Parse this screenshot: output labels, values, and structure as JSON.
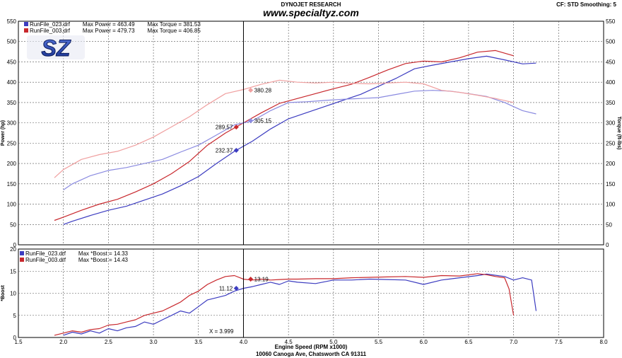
{
  "header": {
    "title": "DYNOJET RESEARCH",
    "website": "www.specialtyz.com",
    "cf_smoothing": "CF: STD  Smoothing: 5",
    "footer": "10060 Canoga Ave, Chatsworth CA 91311",
    "logo_text": "SZ"
  },
  "legend_top": [
    {
      "run": "RunFile_023.drf",
      "power": "Max Power = 463.49",
      "torque": "Max Torque = 381.53",
      "color": "#3c3cc0"
    },
    {
      "run": "RunFile_003.drf",
      "power": "Max Power = 479.73",
      "torque": "Max Torque = 406.85",
      "color": "#c8282d"
    }
  ],
  "legend_bottom": [
    {
      "run": "RunFile_023.drf",
      "boost": "Max *Boost = 14.33",
      "color": "#3c3cc0"
    },
    {
      "run": "RunFile_003.drf",
      "boost": "Max *Boost = 14.43",
      "color": "#c8282d"
    }
  ],
  "colors": {
    "run_023": "#3c3cc0",
    "run_003": "#c8282d",
    "run_023_torque": "#8a8ae0",
    "run_003_torque": "#f0a0a0"
  },
  "chart_data": [
    {
      "type": "line",
      "xlabel": "Engine Speed (RPM x1000)",
      "ylabel": "Power (hp)",
      "y2label": "Torque (ft-lbs)",
      "xlim": [
        1.5,
        8.0
      ],
      "ylim": [
        0,
        550
      ],
      "xticks": [
        "1.5",
        "2.0",
        "2.5",
        "3.0",
        "3.5",
        "4.0",
        "4.5",
        "5.0",
        "5.5",
        "6.0",
        "6.5",
        "7.0",
        "7.5",
        "8.0"
      ],
      "yticks": [
        "0",
        "50",
        "100",
        "150",
        "200",
        "250",
        "300",
        "350",
        "400",
        "450",
        "500",
        "550"
      ],
      "grid": true,
      "cursor_x": 4.0,
      "series": [
        {
          "name": "RunFile_023.drf Power",
          "color": "#3c3cc0",
          "x": [
            2.0,
            2.1,
            2.3,
            2.5,
            2.7,
            2.9,
            3.1,
            3.3,
            3.5,
            3.7,
            3.9,
            4.1,
            4.3,
            4.5,
            4.7,
            4.9,
            5.1,
            5.3,
            5.5,
            5.7,
            5.9,
            6.1,
            6.3,
            6.5,
            6.7,
            6.9,
            7.1,
            7.25
          ],
          "y": [
            50,
            58,
            72,
            85,
            95,
            110,
            125,
            145,
            168,
            200,
            230,
            255,
            285,
            310,
            325,
            340,
            355,
            370,
            390,
            410,
            433,
            442,
            450,
            458,
            464,
            455,
            445,
            447
          ]
        },
        {
          "name": "RunFile_003.drf Power",
          "color": "#c8282d",
          "x": [
            1.9,
            2.0,
            2.2,
            2.4,
            2.6,
            2.8,
            3.0,
            3.2,
            3.4,
            3.6,
            3.8,
            4.0,
            4.2,
            4.4,
            4.6,
            4.8,
            5.0,
            5.2,
            5.4,
            5.6,
            5.8,
            6.0,
            6.2,
            6.4,
            6.6,
            6.8,
            7.0
          ],
          "y": [
            60,
            68,
            85,
            100,
            112,
            130,
            150,
            175,
            205,
            245,
            275,
            300,
            325,
            348,
            360,
            372,
            384,
            395,
            412,
            430,
            446,
            452,
            450,
            460,
            474,
            478,
            465
          ]
        },
        {
          "name": "RunFile_023.drf Torque",
          "color": "#8a8ae0",
          "x": [
            2.0,
            2.1,
            2.3,
            2.5,
            2.7,
            2.9,
            3.1,
            3.3,
            3.5,
            3.7,
            3.9,
            4.1,
            4.3,
            4.5,
            4.7,
            4.9,
            5.1,
            5.3,
            5.5,
            5.7,
            5.9,
            6.1,
            6.3,
            6.5,
            6.7,
            6.9,
            7.1,
            7.25
          ],
          "y": [
            135,
            150,
            170,
            183,
            190,
            200,
            210,
            228,
            245,
            270,
            295,
            305,
            330,
            350,
            352,
            355,
            358,
            360,
            362,
            370,
            378,
            380,
            378,
            372,
            365,
            350,
            330,
            322
          ]
        },
        {
          "name": "RunFile_003.drf Torque",
          "color": "#f0a0a0",
          "x": [
            1.9,
            2.0,
            2.2,
            2.4,
            2.6,
            2.8,
            3.0,
            3.2,
            3.4,
            3.6,
            3.8,
            4.0,
            4.2,
            4.4,
            4.6,
            4.8,
            5.0,
            5.2,
            5.4,
            5.6,
            5.8,
            6.0,
            6.2,
            6.4,
            6.6,
            6.8,
            7.0
          ],
          "y": [
            165,
            185,
            210,
            222,
            230,
            245,
            265,
            290,
            315,
            345,
            372,
            382,
            395,
            405,
            400,
            398,
            400,
            397,
            396,
            398,
            400,
            396,
            380,
            375,
            368,
            360,
            350
          ]
        }
      ],
      "markers": [
        {
          "x": 4.08,
          "y": 380.28,
          "label": "380.28",
          "color": "#f0a0a0"
        },
        {
          "x": 4.08,
          "y": 305.15,
          "label": "305.15",
          "color": "#8a8ae0"
        },
        {
          "x": 3.92,
          "y": 289.57,
          "label": "289.57",
          "color": "#c8282d"
        },
        {
          "x": 3.92,
          "y": 232.37,
          "label": "232.37",
          "color": "#3c3cc0"
        }
      ]
    },
    {
      "type": "line",
      "xlabel": "Engine Speed (RPM x1000)",
      "ylabel": "*Boost",
      "xlim": [
        1.5,
        8.0
      ],
      "ylim": [
        0,
        20
      ],
      "xticks": [
        "1.5",
        "2.0",
        "2.5",
        "3.0",
        "3.5",
        "4.0",
        "4.5",
        "5.0",
        "5.5",
        "6.0",
        "6.5",
        "7.0",
        "7.5",
        "8.0"
      ],
      "yticks": [
        "0",
        "5",
        "10",
        "15",
        "20"
      ],
      "grid": true,
      "cursor_x": 4.0,
      "cursor_label": "X = 3.999",
      "series": [
        {
          "name": "RunFile_023.drf *Boost",
          "color": "#3c3cc0",
          "x": [
            2.0,
            2.1,
            2.2,
            2.3,
            2.4,
            2.5,
            2.6,
            2.7,
            2.8,
            2.9,
            3.0,
            3.1,
            3.2,
            3.3,
            3.4,
            3.5,
            3.6,
            3.7,
            3.8,
            3.9,
            4.0,
            4.1,
            4.2,
            4.3,
            4.4,
            4.5,
            4.6,
            4.8,
            5.0,
            5.2,
            5.4,
            5.6,
            5.8,
            6.0,
            6.2,
            6.4,
            6.6,
            6.7,
            6.9,
            7.0,
            7.1,
            7.2,
            7.25
          ],
          "y": [
            0.5,
            1.2,
            0.8,
            1.5,
            1.0,
            2.0,
            1.5,
            2.2,
            2.5,
            3.5,
            3.0,
            4.0,
            5.0,
            6.0,
            5.5,
            7.0,
            8.5,
            9.0,
            9.5,
            10.5,
            11.12,
            11.5,
            12.0,
            12.5,
            12.0,
            12.8,
            12.5,
            12.2,
            13.0,
            13.0,
            13.2,
            13.1,
            13.0,
            12.0,
            13.0,
            13.5,
            14.0,
            14.33,
            13.8,
            13.0,
            13.5,
            13.0,
            6.0
          ]
        },
        {
          "name": "RunFile_003.drf *Boost",
          "color": "#c8282d",
          "x": [
            1.9,
            2.0,
            2.1,
            2.2,
            2.3,
            2.4,
            2.5,
            2.6,
            2.7,
            2.8,
            2.9,
            3.0,
            3.1,
            3.2,
            3.3,
            3.4,
            3.5,
            3.6,
            3.7,
            3.8,
            3.9,
            4.0,
            4.1,
            4.2,
            4.3,
            4.4,
            4.5,
            4.6,
            4.8,
            5.0,
            5.2,
            5.4,
            5.6,
            5.8,
            6.0,
            6.2,
            6.4,
            6.6,
            6.7,
            6.8,
            6.9,
            6.95,
            7.0
          ],
          "y": [
            0.5,
            1.0,
            1.5,
            1.2,
            1.8,
            2.0,
            2.8,
            3.0,
            3.5,
            4.0,
            5.0,
            5.5,
            6.0,
            7.0,
            8.0,
            9.5,
            10.5,
            12.0,
            13.0,
            13.8,
            14.0,
            13.19,
            13.0,
            13.2,
            13.0,
            13.1,
            13.2,
            13.2,
            13.3,
            13.3,
            13.5,
            13.6,
            13.7,
            13.8,
            13.6,
            14.0,
            13.9,
            14.43,
            14.2,
            13.8,
            13.5,
            11.0,
            5.0
          ]
        }
      ],
      "markers": [
        {
          "x": 4.08,
          "y": 13.19,
          "label": "13.19",
          "color": "#c8282d"
        },
        {
          "x": 3.92,
          "y": 11.12,
          "label": "11.12",
          "color": "#3c3cc0"
        }
      ]
    }
  ]
}
